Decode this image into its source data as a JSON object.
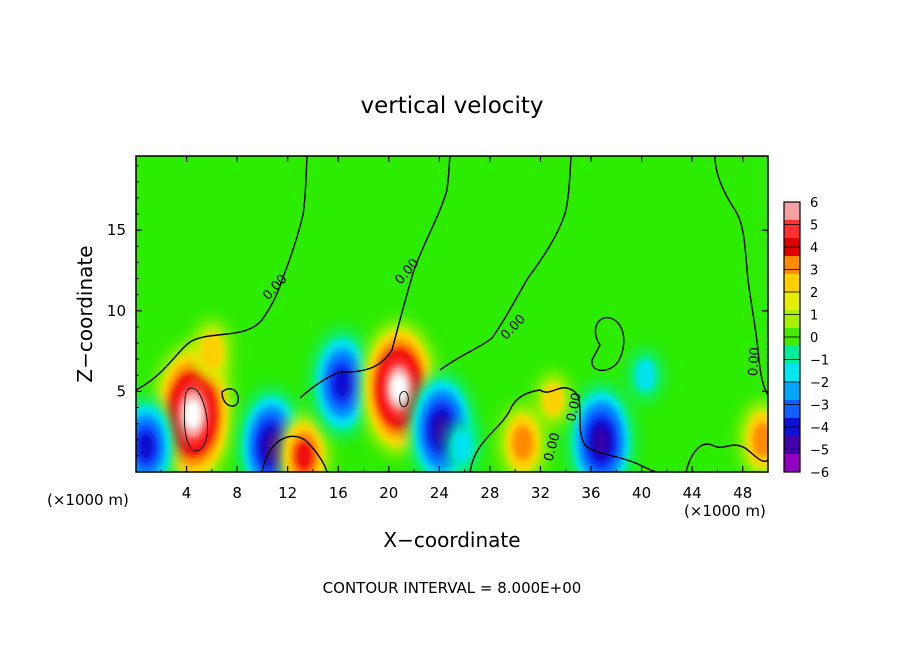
{
  "chart_data": {
    "type": "heatmap",
    "title": "vertical velocity",
    "xlabel": "X−coordinate",
    "ylabel": "Z−coordinate",
    "x_unit_left": "(×1000 m)",
    "x_unit_right": "(×1000 m)",
    "xlim": [
      0,
      50
    ],
    "ylim": [
      0,
      19.6
    ],
    "x_ticks": [
      "4",
      "8",
      "12",
      "16",
      "20",
      "24",
      "28",
      "32",
      "36",
      "40",
      "44",
      "48"
    ],
    "y_ticks": [
      "5",
      "10",
      "15"
    ],
    "colorbar": {
      "ticks": [
        "6",
        "5",
        "4",
        "3",
        "2",
        "1",
        "0",
        "−1",
        "−2",
        "−3",
        "−4",
        "−5",
        "−6"
      ],
      "colors": [
        "#f4a0a0",
        "#ff3030",
        "#e00000",
        "#ff8c00",
        "#ffd000",
        "#e4ee00",
        "#a8f000",
        "#44ec00",
        "#00ee9a",
        "#00e6ee",
        "#00a8ff",
        "#1060ff",
        "#1010d8",
        "#4000a8",
        "#9000c0"
      ]
    },
    "contour_label": "0.00",
    "footer": "CONTOUR INTERVAL = 8.000E+00",
    "features": [
      {
        "x": 4.5,
        "z": 3.6,
        "value": 7.0
      },
      {
        "x": 6.0,
        "z": 7.5,
        "value": 2.0
      },
      {
        "x": 0.8,
        "z": 1.6,
        "value": -4.5
      },
      {
        "x": 10.7,
        "z": 1.6,
        "value": -5.5
      },
      {
        "x": 13.3,
        "z": 1.0,
        "value": 3.5
      },
      {
        "x": 16.3,
        "z": 5.5,
        "value": -5.0
      },
      {
        "x": 20.8,
        "z": 5.2,
        "value": 6.5
      },
      {
        "x": 24.2,
        "z": 2.6,
        "value": -5.5
      },
      {
        "x": 25.8,
        "z": 1.6,
        "value": -1.5
      },
      {
        "x": 30.6,
        "z": 1.8,
        "value": 3.0
      },
      {
        "x": 36.8,
        "z": 1.9,
        "value": -5.5
      },
      {
        "x": 40.3,
        "z": 6.0,
        "value": -1.5
      },
      {
        "x": 33.0,
        "z": 4.5,
        "value": 1.5
      },
      {
        "x": 49.6,
        "z": 2.0,
        "value": 3.0
      }
    ]
  }
}
